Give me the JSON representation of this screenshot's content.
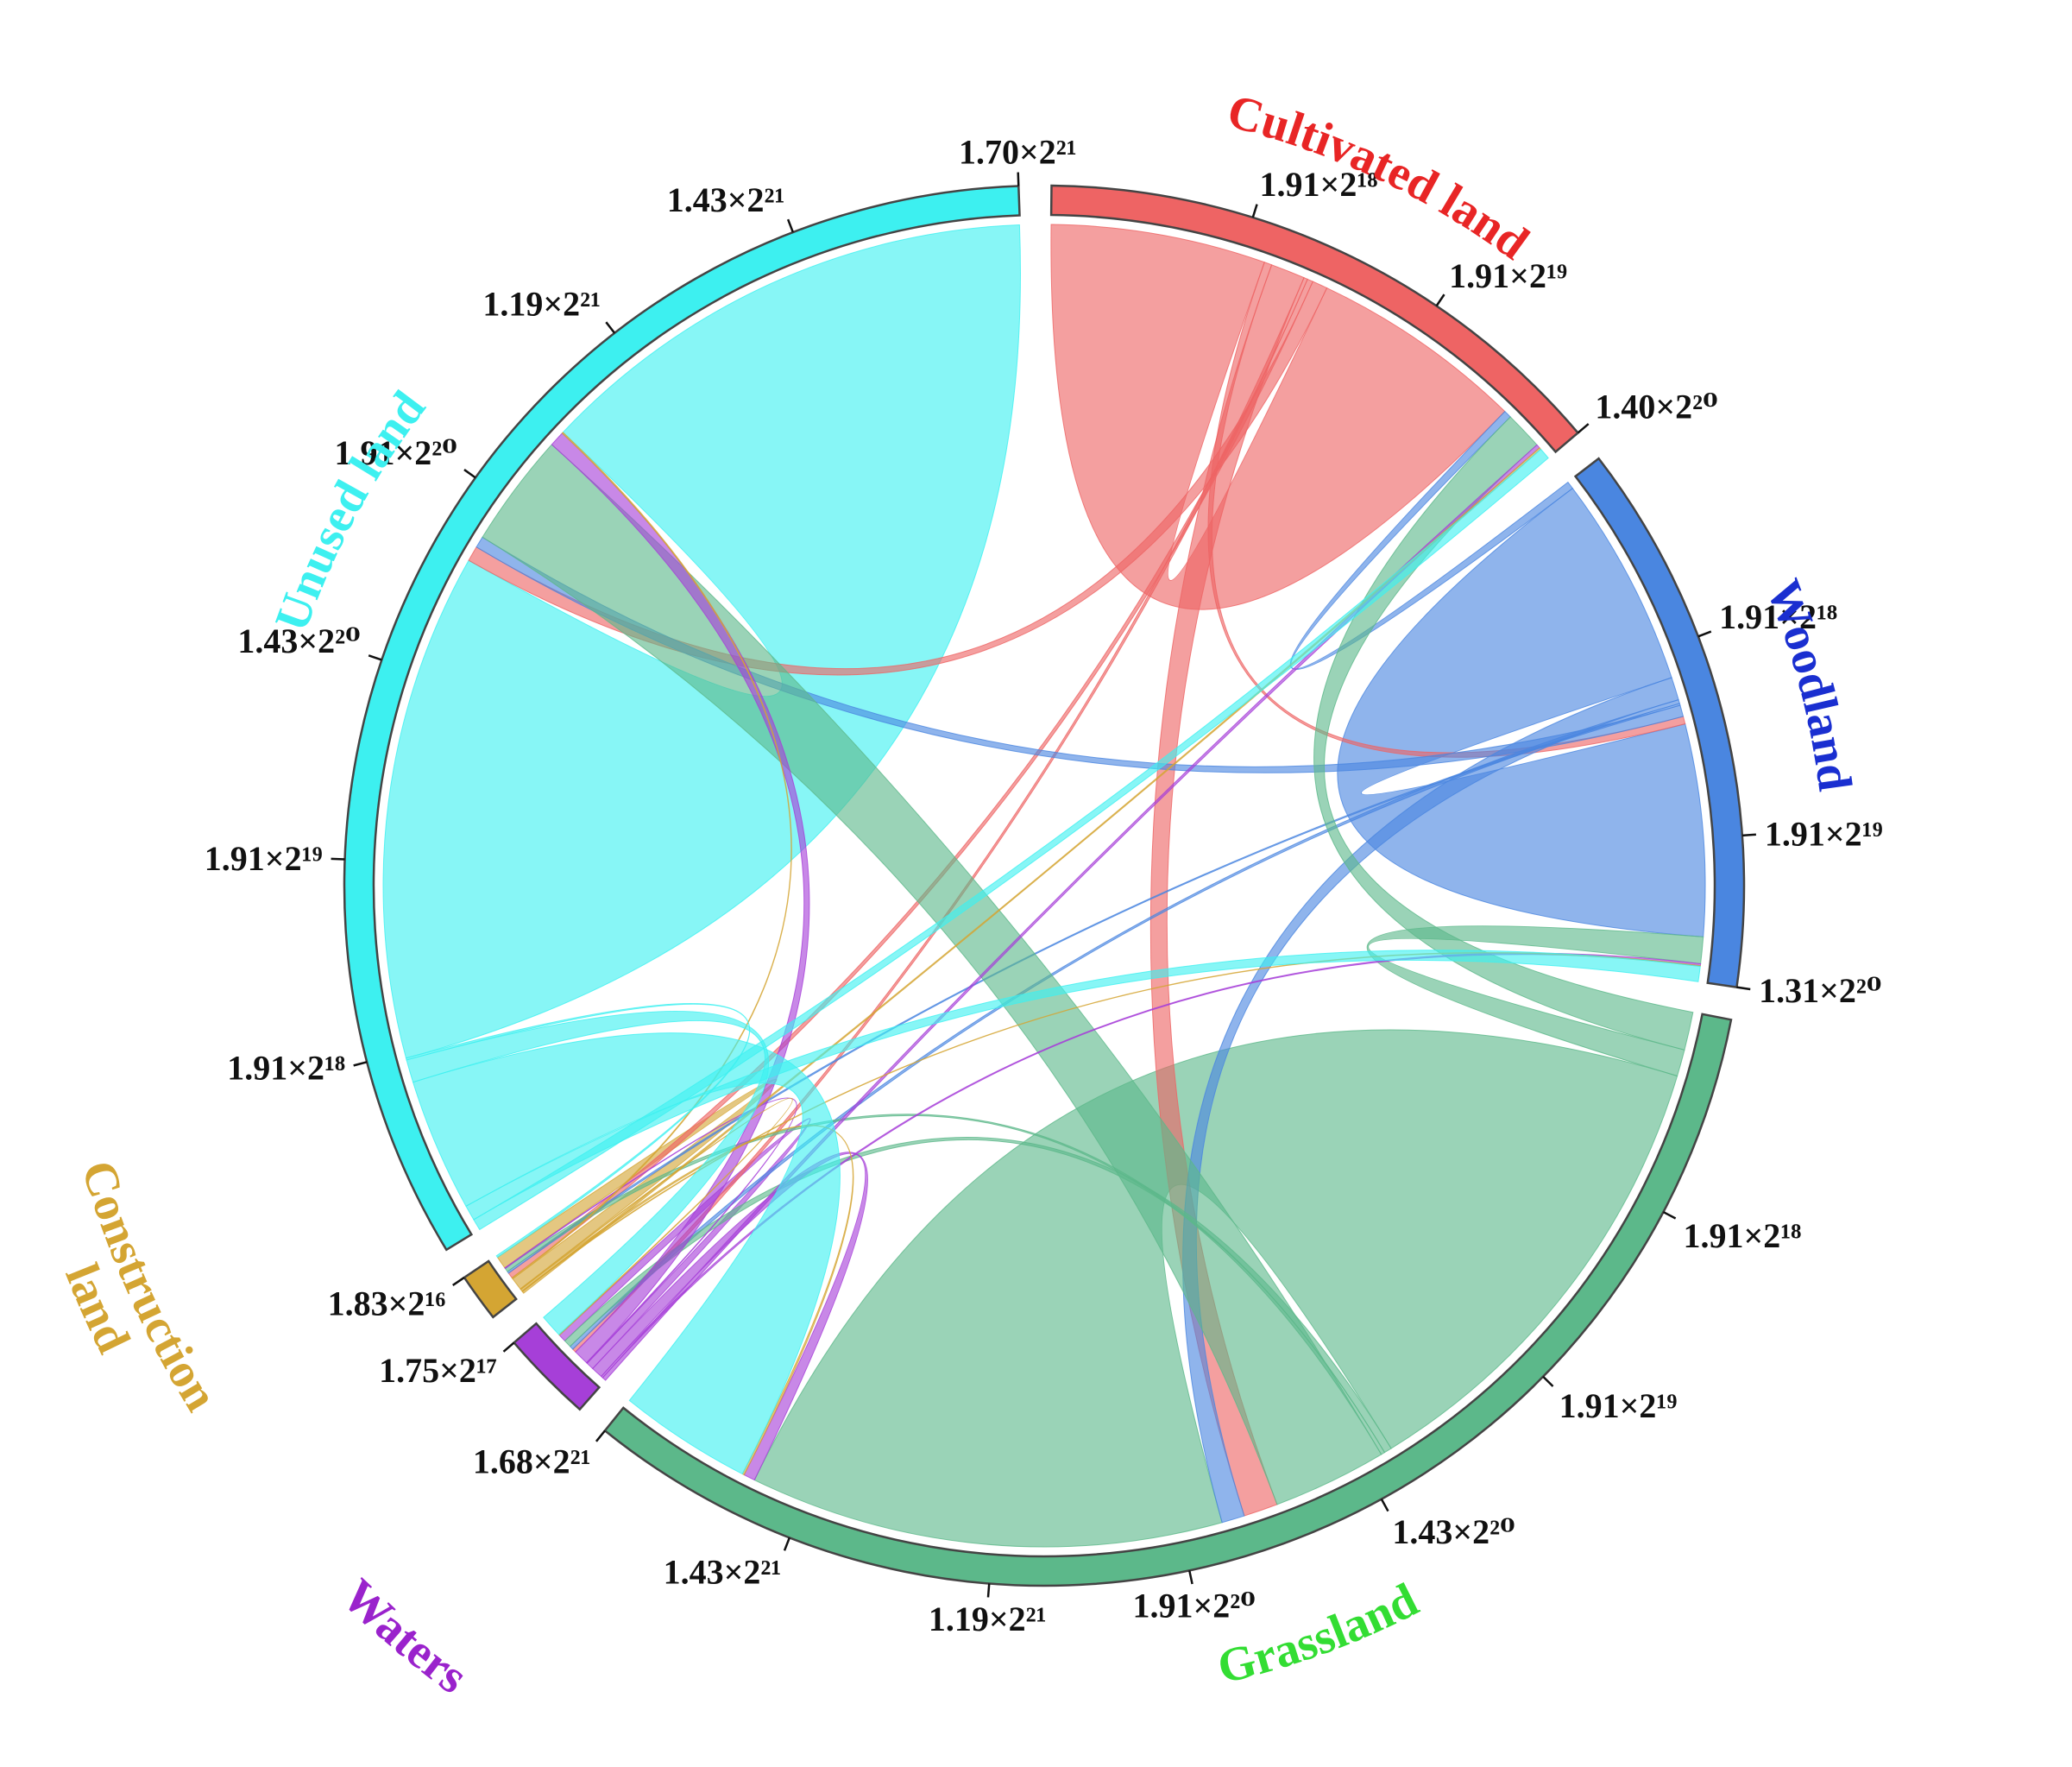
{
  "chart_data": {
    "type": "chord",
    "groups": [
      {
        "name": "Cultivated land",
        "color": "#ee6464",
        "label_color": "#e82525",
        "total": 1468006,
        "ticks": [
          {
            "value": 500695,
            "label": "1.91×2¹⁸"
          },
          {
            "value": 1001390,
            "label": "1.91×2¹⁹"
          },
          {
            "value": 1468006,
            "label": "1.40×2²⁰"
          }
        ]
      },
      {
        "name": "Woodland",
        "color": "#4a86e0",
        "label_color": "#1a2fd0",
        "total": 1373635,
        "ticks": [
          {
            "value": 500695,
            "label": "1.91×2¹⁸"
          },
          {
            "value": 1001390,
            "label": "1.91×2¹⁹"
          },
          {
            "value": 1373635,
            "label": "1.31×2²⁰"
          }
        ]
      },
      {
        "name": "Grassland",
        "color": "#5cb88a",
        "label_color": "#33dd33",
        "total": 3523215,
        "ticks": [
          {
            "value": 500695,
            "label": "1.91×2¹⁸"
          },
          {
            "value": 1001390,
            "label": "1.91×2¹⁹"
          },
          {
            "value": 1499464,
            "label": "1.43×2²⁰"
          },
          {
            "value": 2002780,
            "label": "1.91×2²⁰"
          },
          {
            "value": 2495611,
            "label": "1.19×2²¹"
          },
          {
            "value": 2998927,
            "label": "1.43×2²¹"
          },
          {
            "value": 3523215,
            "label": "1.68×2²¹"
          }
        ]
      },
      {
        "name": "Waters",
        "color": "#a63fd8",
        "label_color": "#9a22cc",
        "total": 229376,
        "ticks": [
          {
            "value": 229376,
            "label": "1.75×2¹⁷"
          }
        ]
      },
      {
        "name": [
          "Construction",
          "land"
        ],
        "color": "#d4a533",
        "label_color": "#d4a533",
        "total": 119931,
        "ticks": [
          {
            "value": 119931,
            "label": "1.83×2¹⁶"
          }
        ]
      },
      {
        "name": "Unused land",
        "color": "#3df0f0",
        "label_color": "#3df0f0",
        "total": 3565158,
        "ticks": [
          {
            "value": 500695,
            "label": "1.91×2¹⁸"
          },
          {
            "value": 1001390,
            "label": "1.91×2¹⁹"
          },
          {
            "value": 1499464,
            "label": "1.43×2²⁰"
          },
          {
            "value": 2002780,
            "label": "1.91×2²⁰"
          },
          {
            "value": 2495611,
            "label": "1.19×2²¹"
          },
          {
            "value": 2998927,
            "label": "1.43×2²¹"
          },
          {
            "value": 3565158,
            "label": "1.70×2²¹"
          }
        ]
      }
    ],
    "matrix": [
      [
        564000,
        20000,
        90000,
        10000,
        15000,
        40000
      ],
      [
        20000,
        556000,
        60000,
        10000,
        5000,
        30000
      ],
      [
        100000,
        70000,
        1244000,
        20000,
        10000,
        300000
      ],
      [
        10000,
        5000,
        30000,
        20000,
        2000,
        40000
      ],
      [
        5000,
        2000,
        5000,
        2000,
        33000,
        3000
      ],
      [
        30000,
        40000,
        350000,
        60000,
        5000,
        1333000
      ]
    ]
  }
}
